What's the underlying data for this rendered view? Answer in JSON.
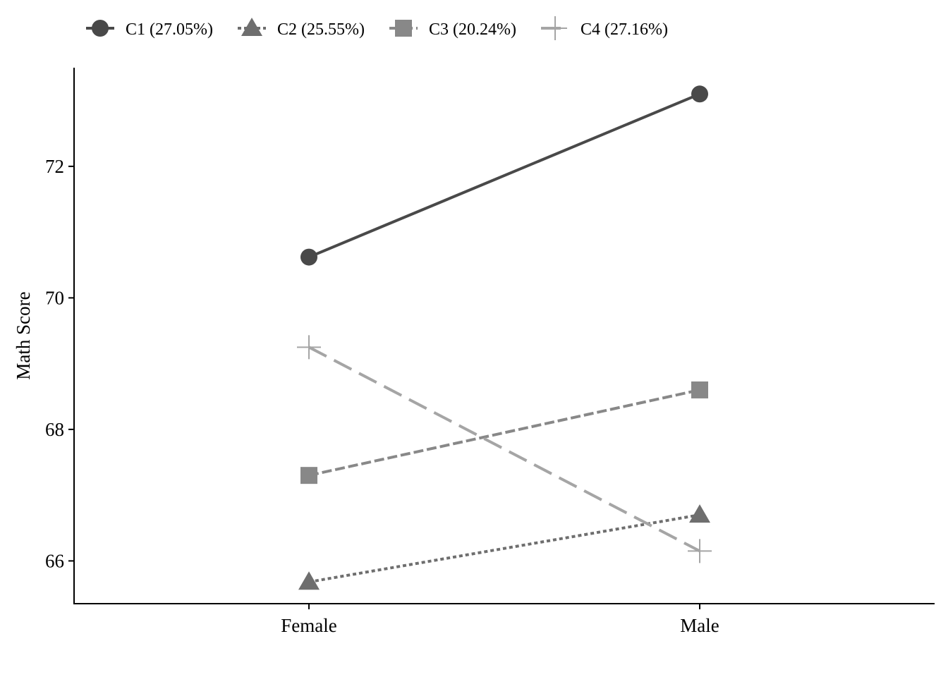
{
  "chart_data": {
    "type": "line",
    "title": "",
    "xlabel": "",
    "ylabel": "Math Score",
    "categories": [
      "Female",
      "Male"
    ],
    "ylim": [
      65.35,
      73.5
    ],
    "yticks": [
      66,
      68,
      70,
      72
    ],
    "grid": false,
    "legend_position": "top-left",
    "series": [
      {
        "name": "C1 (27.05%)",
        "values": [
          70.62,
          73.1
        ],
        "marker": "circle",
        "dash": "solid",
        "color": "#494949"
      },
      {
        "name": "C2 (25.55%)",
        "values": [
          65.68,
          66.7
        ],
        "marker": "triangle",
        "dash": "dotted",
        "color": "#6e6e6e"
      },
      {
        "name": "C3 (20.24%)",
        "values": [
          67.3,
          68.6
        ],
        "marker": "square",
        "dash": "dashed",
        "color": "#888888"
      },
      {
        "name": "C4 (27.16%)",
        "values": [
          69.25,
          66.15
        ],
        "marker": "plus",
        "dash": "longdash",
        "color": "#a5a5a5"
      }
    ]
  }
}
